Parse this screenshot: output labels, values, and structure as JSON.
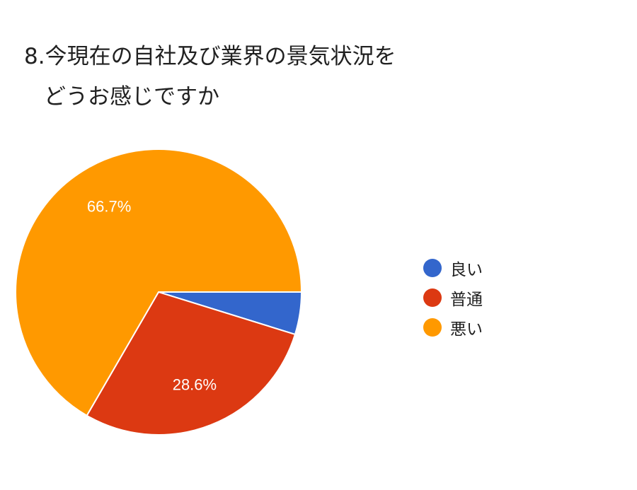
{
  "title": {
    "line1": "8.今現在の自社及び業界の景気状況を",
    "line2": "どうお感じですか"
  },
  "chart_data": {
    "type": "pie",
    "title": "8.今現在の自社及び業界の景気状況を どうお感じですか",
    "legend_position": "right",
    "slices": [
      {
        "name": "良い",
        "value": 4.8,
        "label": "",
        "color": "#3366cc"
      },
      {
        "name": "普通",
        "value": 28.6,
        "label": "28.6%",
        "color": "#dc3912"
      },
      {
        "name": "悪い",
        "value": 66.7,
        "label": "66.7%",
        "color": "#ff9900"
      }
    ]
  }
}
